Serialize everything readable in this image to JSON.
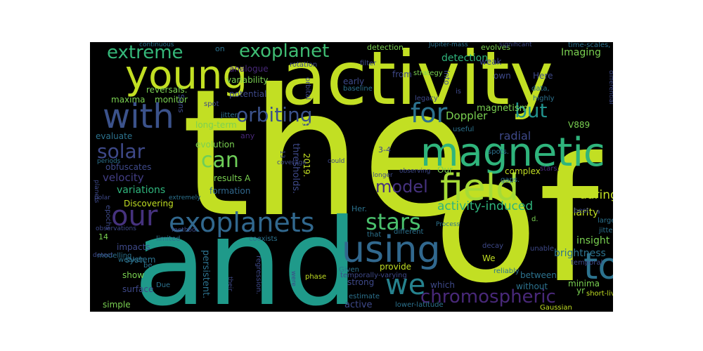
{
  "words": [
    {
      "text": "the",
      "color": "#c2df23"
    },
    {
      "text": "of",
      "color": "#c2df23"
    },
    {
      "text": "and",
      "color": "#1f9a8a"
    },
    {
      "text": "activity",
      "color": "#c2df23"
    },
    {
      "text": "magnetic",
      "color": "#2fb47c"
    },
    {
      "text": "young",
      "color": "#c2df23"
    },
    {
      "text": "using",
      "color": "#31688e"
    },
    {
      "text": "field",
      "color": "#a5db36"
    },
    {
      "text": "with",
      "color": "#3b528b"
    },
    {
      "text": "to",
      "color": "#2c728e"
    },
    {
      "text": "our",
      "color": "#46327e"
    },
    {
      "text": "exoplanets",
      "color": "#31688e"
    },
    {
      "text": "we",
      "color": "#26828e"
    },
    {
      "text": "for",
      "color": "#2c728e"
    },
    {
      "text": "chromospheric",
      "color": "#482878"
    },
    {
      "text": "extreme",
      "color": "#35b779"
    },
    {
      "text": "exoplanet",
      "color": "#3fbc73"
    },
    {
      "text": "orbiting",
      "color": "#3b528b"
    },
    {
      "text": "stars",
      "color": "#4ac16d"
    },
    {
      "text": "but",
      "color": "#21918c"
    },
    {
      "text": "solar",
      "color": "#3e4989"
    },
    {
      "text": "can",
      "color": "#6ece58"
    },
    {
      "text": "model",
      "color": "#46327e"
    },
    {
      "text": "activity-induced",
      "color": "#2fb47c"
    },
    {
      "text": "detection",
      "color": "#2fb47c"
    },
    {
      "text": "Doppler",
      "color": "#7ad151"
    },
    {
      "text": "velocity",
      "color": "#433e85"
    },
    {
      "text": "variations",
      "color": "#2fb47c"
    },
    {
      "text": "radial",
      "color": "#3e4989"
    },
    {
      "text": "during",
      "color": "#c2df23"
    },
    {
      "text": "magnetism",
      "color": "#7ad151"
    },
    {
      "text": "Imaging",
      "color": "#7ad151"
    },
    {
      "text": "insight",
      "color": "#7ad151"
    },
    {
      "text": "brightness",
      "color": "#2c728e"
    },
    {
      "text": "polarity",
      "color": "#c2df23"
    },
    {
      "text": "analogue",
      "color": "#482878"
    },
    {
      "text": "potential",
      "color": "#3e4989"
    },
    {
      "text": "variability",
      "color": "#7ad151"
    },
    {
      "text": "reversals.",
      "color": "#7ad151"
    },
    {
      "text": "monitor",
      "color": "#7ad151"
    },
    {
      "text": "maxima",
      "color": "#7ad151"
    },
    {
      "text": "long-term",
      "color": "#7ad151"
    },
    {
      "text": "evaluate",
      "color": "#2c728e"
    },
    {
      "text": "evolution",
      "color": "#7ad151"
    },
    {
      "text": "obfuscates",
      "color": "#3e4989"
    },
    {
      "text": "formation",
      "color": "#31688e"
    },
    {
      "text": "results A",
      "color": "#7ad151"
    },
    {
      "text": "Discovering",
      "color": "#c2df23"
    },
    {
      "text": "complex",
      "color": "#c2df23"
    },
    {
      "text": "stars.",
      "color": "#482878"
    },
    {
      "text": "between",
      "color": "#2c728e"
    },
    {
      "text": "without",
      "color": "#2c728e"
    },
    {
      "text": "minima",
      "color": "#7ad151"
    },
    {
      "text": "active",
      "color": "#3e4989"
    },
    {
      "text": "strong",
      "color": "#3e4989"
    },
    {
      "text": "which",
      "color": "#3e4989"
    },
    {
      "text": "provide",
      "color": "#c2df23"
    },
    {
      "text": "show",
      "color": "#7ad151"
    },
    {
      "text": "impacts",
      "color": "#3e4989"
    },
    {
      "text": "system",
      "color": "#2c728e"
    },
    {
      "text": "surface",
      "color": "#3e4989"
    },
    {
      "text": "simple",
      "color": "#7ad151"
    },
    {
      "text": "persistent.",
      "color": "#2c728e"
    },
    {
      "text": "thresholds.",
      "color": "#3e4989"
    },
    {
      "text": "2019.",
      "color": "#c2df23"
    },
    {
      "text": "2004",
      "color": "#c2df23"
    },
    {
      "text": "3-4",
      "color": "#3e4989"
    },
    {
      "text": "on",
      "color": "#2c728e"
    },
    {
      "text": "detection.",
      "color": "#7ad151"
    },
    {
      "text": "evolves",
      "color": "#7ad151"
    },
    {
      "text": "weak",
      "color": "#3e4989"
    },
    {
      "text": "Here",
      "color": "#3e4989"
    },
    {
      "text": "own",
      "color": "#3e4989"
    },
    {
      "text": "from",
      "color": "#3e4989"
    },
    {
      "text": "early",
      "color": "#3e4989"
    },
    {
      "text": "into",
      "color": "#3e4989"
    },
    {
      "text": "Suns",
      "color": "#3e4989"
    },
    {
      "text": "any",
      "color": "#482878"
    },
    {
      "text": "V889",
      "color": "#7ad151"
    },
    {
      "text": "Our",
      "color": "#7ad151"
    },
    {
      "text": "We",
      "color": "#c2df23"
    },
    {
      "text": "data",
      "color": "#3e4989"
    },
    {
      "text": "yr",
      "color": "#7ad151"
    },
    {
      "text": "Her.",
      "color": "#2c728e"
    },
    {
      "text": "map",
      "color": "#c2df23"
    },
    {
      "text": "14",
      "color": "#7ad151"
    },
    {
      "text": "epochs",
      "color": "#3e4989"
    },
    {
      "text": "modelling",
      "color": "#2c728e"
    },
    {
      "text": "limited",
      "color": "#2c728e"
    },
    {
      "text": "coexists",
      "color": "#2c728e"
    },
    {
      "text": "weaker,",
      "color": "#2c728e"
    },
    {
      "text": "be",
      "color": "#2c728e"
    },
    {
      "text": "Due",
      "color": "#2c728e"
    },
    {
      "text": "phase",
      "color": "#c2df23"
    },
    {
      "text": "Given",
      "color": "#2c728e"
    },
    {
      "text": "estimate",
      "color": "#2c728e"
    },
    {
      "text": "lower-latitude",
      "color": "#2c728e"
    },
    {
      "text": "Gaussian",
      "color": "#c2df23"
    },
    {
      "text": "short-lived",
      "color": "#c2df23"
    },
    {
      "text": "temporally-varying",
      "color": "#3e4989"
    },
    {
      "text": "regression.",
      "color": "#3e4989"
    },
    {
      "text": "their",
      "color": "#3e4989"
    },
    {
      "text": "were",
      "color": "#3e4989"
    },
    {
      "text": "different",
      "color": "#2c728e"
    },
    {
      "text": "that",
      "color": "#2c728e"
    },
    {
      "text": "Process",
      "color": "#2c728e"
    },
    {
      "text": "unable",
      "color": "#3e4989"
    },
    {
      "text": "reliably",
      "color": "#2c728e"
    },
    {
      "text": "decay",
      "color": "#3e4989"
    },
    {
      "text": "temporal",
      "color": "#3e4989"
    },
    {
      "text": "large",
      "color": "#2c728e"
    },
    {
      "text": "jitter",
      "color": "#2c728e"
    },
    {
      "text": "best",
      "color": "#3e4989"
    },
    {
      "text": "d.",
      "color": "#7ad151"
    },
    {
      "text": "gaps.",
      "color": "#2c728e"
    },
    {
      "text": "spots.",
      "color": "#2c728e"
    },
    {
      "text": "data,",
      "color": "#2c728e"
    },
    {
      "text": "highly",
      "color": "#2c728e"
    },
    {
      "text": "jitter,",
      "color": "#2c728e"
    },
    {
      "text": "useful",
      "color": "#2c728e"
    },
    {
      "text": "strategy",
      "color": "#7ad151"
    },
    {
      "text": "legacy",
      "color": "#3e4989"
    },
    {
      "text": "baseline",
      "color": "#2c728e"
    },
    {
      "text": "is",
      "color": "#3e4989"
    },
    {
      "text": "filter",
      "color": "#3e4989"
    },
    {
      "text": "rotation",
      "color": "#3e4989"
    },
    {
      "text": "orbital",
      "color": "#3e4989"
    },
    {
      "text": "spot",
      "color": "#3e4989"
    },
    {
      "text": "continuous",
      "color": "#2c728e"
    },
    {
      "text": "Jupiter-mass",
      "color": "#2c728e"
    },
    {
      "text": "significant",
      "color": "#3e4989"
    },
    {
      "text": "time-scales,",
      "color": "#2c728e"
    },
    {
      "text": "differential",
      "color": "#3e4989"
    },
    {
      "text": "observing",
      "color": "#3e4989"
    },
    {
      "text": "coverage",
      "color": "#3e4989"
    },
    {
      "text": "could",
      "color": "#3e4989"
    },
    {
      "text": "longer",
      "color": "#3e4989"
    },
    {
      "text": "periods",
      "color": "#2c728e"
    },
    {
      "text": "polar",
      "color": "#3e4989"
    },
    {
      "text": "13",
      "color": "#3e4989"
    },
    {
      "text": "planets",
      "color": "#3e4989"
    },
    {
      "text": "observations",
      "color": "#3e4989"
    },
    {
      "text": "method",
      "color": "#3e4989"
    },
    {
      "text": "extremely",
      "color": "#2c728e"
    },
    {
      "text": "detect",
      "color": "#3e4989"
    },
    {
      "text": "a",
      "color": "#3e4989"
    }
  ]
}
